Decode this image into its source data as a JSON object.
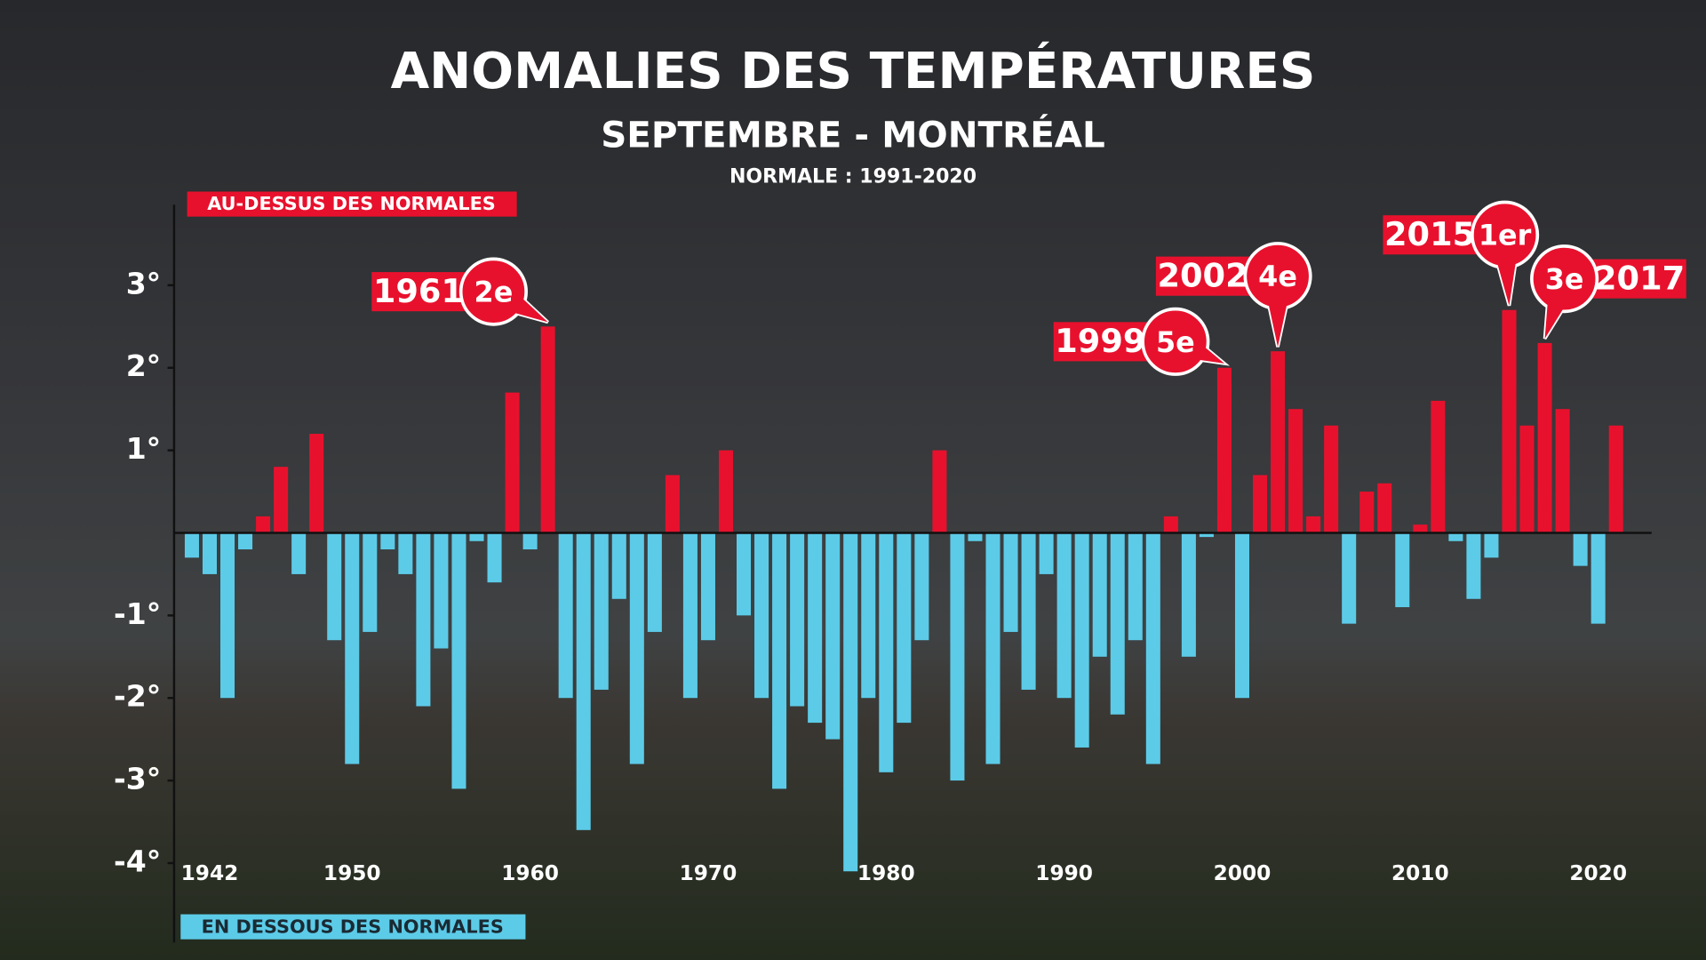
{
  "chart_data": {
    "type": "bar",
    "title": "ANOMALIES DES TEMPÉRATURES",
    "subtitle": "SEPTEMBRE - MONTRÉAL",
    "note": "NORMALE : 1991-2020",
    "above_label": "AU-DESSUS DES NORMALES",
    "below_label": "EN DESSOUS DES NORMALES",
    "positive_color": "#e8112d",
    "negative_color": "#5ccbe8",
    "x": [
      1941,
      1942,
      1943,
      1944,
      1945,
      1946,
      1947,
      1948,
      1949,
      1950,
      1951,
      1952,
      1953,
      1954,
      1955,
      1956,
      1957,
      1958,
      1959,
      1960,
      1961,
      1962,
      1963,
      1964,
      1965,
      1966,
      1967,
      1968,
      1969,
      1970,
      1971,
      1972,
      1973,
      1974,
      1975,
      1976,
      1977,
      1978,
      1979,
      1980,
      1981,
      1982,
      1983,
      1984,
      1985,
      1986,
      1987,
      1988,
      1989,
      1990,
      1991,
      1992,
      1993,
      1994,
      1995,
      1996,
      1997,
      1998,
      1999,
      2000,
      2001,
      2002,
      2003,
      2004,
      2005,
      2006,
      2007,
      2008,
      2009,
      2010,
      2011,
      2012,
      2013,
      2014,
      2015,
      2016,
      2017,
      2018,
      2019,
      2020,
      2021
    ],
    "values": [
      -0.3,
      -0.5,
      -2.0,
      -0.2,
      0.2,
      0.8,
      -0.5,
      1.2,
      -1.3,
      -2.8,
      -1.2,
      -0.2,
      -0.5,
      -2.1,
      -1.4,
      -3.1,
      -0.1,
      -0.6,
      1.7,
      -0.2,
      2.5,
      -2.0,
      -3.6,
      -1.9,
      -0.8,
      -2.8,
      -1.2,
      0.7,
      -2.0,
      -1.3,
      1.0,
      -1.0,
      -2.0,
      -3.1,
      -2.1,
      -2.3,
      -2.5,
      -4.1,
      -2.0,
      -2.9,
      -2.3,
      -1.3,
      1.0,
      -3.0,
      -0.1,
      -2.8,
      -1.2,
      -1.9,
      -0.5,
      -2.0,
      -2.6,
      -1.5,
      -2.2,
      -1.3,
      -2.8,
      0.2,
      -1.5,
      -0.05,
      2.0,
      -2.0,
      0.7,
      2.2,
      1.5,
      0.2,
      1.3,
      -1.1,
      0.5,
      0.6,
      -0.9,
      0.1,
      1.6,
      -0.1,
      -0.8,
      -0.3,
      2.7,
      1.3,
      2.3,
      1.5,
      -0.4,
      -1.1,
      1.3
    ],
    "xlim": [
      1940,
      2023
    ],
    "xticks": [
      1942,
      1950,
      1960,
      1970,
      1980,
      1990,
      2000,
      2010,
      2020
    ],
    "ylim": [
      -4.95,
      3.95
    ],
    "yticks": [
      {
        "value": 3,
        "label": "3°"
      },
      {
        "value": 2,
        "label": "2°"
      },
      {
        "value": 1,
        "label": "1°"
      },
      {
        "value": -1,
        "label": "-1°"
      },
      {
        "value": -2,
        "label": "-2°"
      },
      {
        "value": -3,
        "label": "-3°"
      },
      {
        "value": -4,
        "label": "-4°"
      }
    ],
    "annotations": [
      {
        "x": 1961,
        "label": "1961",
        "rank": "2e"
      },
      {
        "x": 1999,
        "label": "1999",
        "rank": "5e"
      },
      {
        "x": 2002,
        "label": "2002",
        "rank": "4e"
      },
      {
        "x": 2015,
        "label": "2015",
        "rank": "1er"
      },
      {
        "x": 2017,
        "label": "2017",
        "rank": "3e"
      }
    ]
  }
}
